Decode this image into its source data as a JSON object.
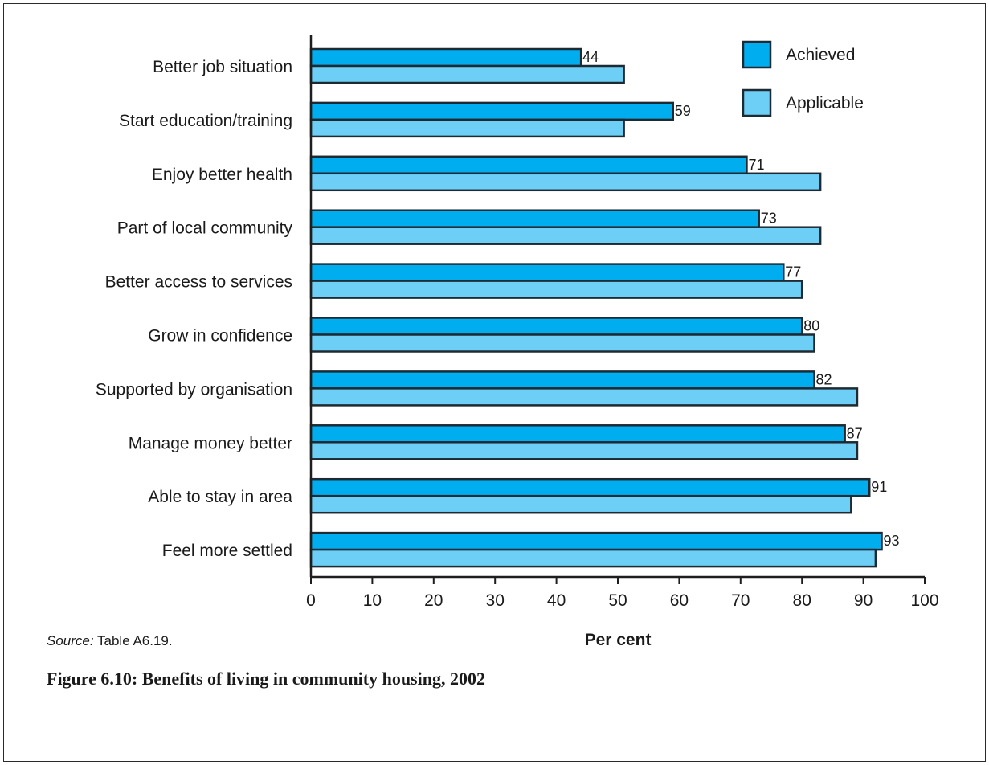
{
  "chart_data": {
    "type": "bar",
    "orientation": "horizontal",
    "categories": [
      "Better job situation",
      "Start education/training",
      "Enjoy better health",
      "Part of local community",
      "Better access to services",
      "Grow in confidence",
      "Supported by organisation",
      "Manage money better",
      "Able to stay in area",
      "Feel more settled"
    ],
    "series": [
      {
        "name": "Achieved",
        "color": "#00aeef",
        "values": [
          44,
          59,
          71,
          73,
          77,
          80,
          82,
          87,
          91,
          93
        ],
        "labels": [
          "44",
          "59",
          "71",
          "73",
          "77",
          "80",
          "82",
          "87",
          "91",
          "93"
        ]
      },
      {
        "name": "Applicable",
        "color": "#6dcff6",
        "values": [
          51,
          51,
          83,
          83,
          80,
          82,
          89,
          89,
          88,
          92
        ]
      }
    ],
    "xlim": [
      0,
      100
    ],
    "xticks": [
      "0",
      "10",
      "20",
      "30",
      "40",
      "50",
      "60",
      "70",
      "80",
      "90",
      "100"
    ],
    "xlabel": "Per cent",
    "legend_position": "top-right",
    "grid": false
  },
  "source": {
    "prefix": "Source:",
    "text": "Table A6.19."
  },
  "caption": "Figure 6.10: Benefits of living in community housing, 2002"
}
